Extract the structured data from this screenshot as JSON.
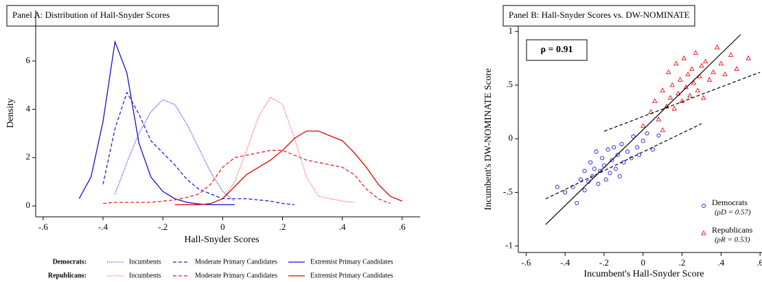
{
  "chart_data": [
    {
      "type": "line",
      "title": "Panel A: Distribution of Hall-Snyder Scores",
      "x_label": "Hall-Snyder Scores",
      "y_label": "Density",
      "x": [
        -0.48,
        -0.44,
        -0.4,
        -0.36,
        -0.32,
        -0.28,
        -0.24,
        -0.2,
        -0.16,
        -0.12,
        -0.08,
        -0.04,
        0,
        0.04,
        0.08,
        0.12,
        0.16,
        0.2,
        0.24,
        0.28,
        0.32,
        0.36,
        0.4,
        0.44,
        0.48,
        0.52,
        0.56,
        0.6
      ],
      "xlim": [
        -0.625,
        0.66
      ],
      "ylim": [
        -0.45,
        8.1
      ],
      "xticks": [
        {
          "value": -0.6,
          "label": "-.6"
        },
        {
          "value": -0.4,
          "label": "-.4"
        },
        {
          "value": -0.2,
          "label": "-.2"
        },
        0,
        {
          "value": 0.2,
          "label": ".2"
        },
        {
          "value": 0.4,
          "label": ".4"
        },
        {
          "value": 0.6,
          "label": ".6"
        }
      ],
      "yticks": [
        0,
        2,
        4,
        6
      ],
      "groups": [
        {
          "name": "Democrats:",
          "series": [
            {
              "name": "Incumbents",
              "color": "#3a3ae8",
              "dash": "dotted",
              "values": [
                null,
                null,
                null,
                0.5,
                1.8,
                3.0,
                3.9,
                4.4,
                4.2,
                3.4,
                2.4,
                1.4,
                0.6,
                0.2,
                null,
                null,
                null,
                null,
                null,
                null,
                null,
                null,
                null,
                null,
                null,
                null,
                null,
                null
              ]
            },
            {
              "name": "Moderate Primary Candidates",
              "color": "#2020d8",
              "dash": "dashed",
              "values": [
                null,
                null,
                0.9,
                3.2,
                4.7,
                3.8,
                2.7,
                2.2,
                1.7,
                1.1,
                0.7,
                0.5,
                0.3,
                0.3,
                0.3,
                0.25,
                0.2,
                0.1,
                0.05,
                null,
                null,
                null,
                null,
                null,
                null,
                null,
                null,
                null
              ]
            },
            {
              "name": "Extremist Primary Candidates",
              "color": "#1010d0",
              "dash": "solid",
              "values": [
                0.3,
                1.2,
                3.5,
                6.8,
                5.5,
                2.6,
                1.2,
                0.6,
                0.3,
                0.15,
                0.08,
                0.05,
                0.05,
                0.05,
                null,
                null,
                null,
                null,
                null,
                null,
                null,
                null,
                null,
                null,
                null,
                null,
                null,
                null
              ]
            }
          ]
        },
        {
          "name": "Republicans:",
          "series": [
            {
              "name": "Incumbents",
              "color": "#f06060",
              "dash": "dotted",
              "values": [
                null,
                null,
                null,
                null,
                null,
                null,
                null,
                null,
                null,
                null,
                null,
                null,
                0.3,
                1.0,
                2.3,
                3.7,
                4.5,
                4.2,
                2.8,
                1.2,
                0.4,
                0.3,
                0.2,
                0.15,
                null,
                null,
                null,
                null
              ]
            },
            {
              "name": "Moderate Primary Candidates",
              "color": "#e82020",
              "dash": "dashed",
              "values": [
                null,
                null,
                0.1,
                0.15,
                0.15,
                0.15,
                0.15,
                0.2,
                0.25,
                0.35,
                0.5,
                0.9,
                1.6,
                2.0,
                2.1,
                2.2,
                2.3,
                2.3,
                2.1,
                1.9,
                1.8,
                1.7,
                1.6,
                1.3,
                0.7,
                0.3,
                0.1,
                null
              ]
            },
            {
              "name": "Extremist Primary Candidates",
              "color": "#e00000",
              "dash": "solid",
              "values": [
                null,
                null,
                null,
                null,
                null,
                null,
                null,
                null,
                0.05,
                0.05,
                0.05,
                0.1,
                0.3,
                0.8,
                1.3,
                1.6,
                1.9,
                2.3,
                2.8,
                3.1,
                3.1,
                2.9,
                2.7,
                2.2,
                1.6,
                0.9,
                0.4,
                0.2
              ]
            }
          ]
        }
      ]
    },
    {
      "type": "scatter",
      "title": "Panel B: Hall-Snyder Scores vs. DW-NOMINATE",
      "x_label": "Incumbent's Hall-Snyder Score",
      "y_label": "Incumbent's DW-NOMINATE Score",
      "annotation": "ρ = 0.91",
      "xlim": [
        -0.64,
        0.61
      ],
      "ylim": [
        -1.06,
        1.05
      ],
      "xticks": [
        {
          "value": -0.6,
          "label": "-.6"
        },
        {
          "value": -0.4,
          "label": "-.4"
        },
        {
          "value": -0.2,
          "label": "-.2"
        },
        0,
        {
          "value": 0.2,
          "label": ".2"
        },
        {
          "value": 0.4,
          "label": ".4"
        },
        {
          "value": 0.6,
          "label": ".6"
        }
      ],
      "yticks": [
        {
          "value": -1,
          "label": "-1"
        },
        {
          "value": -0.5,
          "label": "-.5"
        },
        0,
        {
          "value": 0.5,
          "label": ".5"
        },
        1
      ],
      "series": [
        {
          "name": "Democrats",
          "note": "(ρD = 0.57)",
          "color": "#1a1ae0",
          "marker": "circle",
          "x": [
            -0.4,
            -0.36,
            -0.34,
            -0.32,
            -0.3,
            -0.3,
            -0.28,
            -0.27,
            -0.26,
            -0.25,
            -0.24,
            -0.23,
            -0.22,
            -0.21,
            -0.2,
            -0.19,
            -0.18,
            -0.17,
            -0.16,
            -0.15,
            -0.14,
            -0.13,
            -0.12,
            -0.11,
            -0.1,
            -0.08,
            -0.06,
            -0.05,
            -0.03,
            -0.02,
            0.0,
            0.02,
            0.05,
            0.08,
            -0.44
          ],
          "values": [
            -0.5,
            -0.45,
            -0.6,
            -0.38,
            -0.3,
            -0.48,
            -0.4,
            -0.22,
            -0.35,
            -0.28,
            -0.12,
            -0.42,
            -0.3,
            -0.18,
            -0.25,
            -0.38,
            -0.1,
            -0.32,
            -0.2,
            -0.08,
            -0.28,
            -0.15,
            -0.35,
            -0.05,
            -0.22,
            -0.12,
            -0.18,
            0.02,
            -0.08,
            -0.15,
            -0.02,
            0.05,
            -0.1,
            0.03,
            -0.45
          ]
        },
        {
          "name": "Republicans",
          "note": "(ρR = 0.53)",
          "color": "#e81010",
          "marker": "triangle",
          "x": [
            0.0,
            0.04,
            0.06,
            0.08,
            0.1,
            0.12,
            0.13,
            0.14,
            0.15,
            0.16,
            0.17,
            0.18,
            0.19,
            0.2,
            0.21,
            0.22,
            0.23,
            0.24,
            0.25,
            0.26,
            0.27,
            0.28,
            0.29,
            0.3,
            0.31,
            0.32,
            0.34,
            0.36,
            0.38,
            0.4,
            0.42,
            0.45,
            0.48,
            0.1,
            0.54
          ],
          "values": [
            0.12,
            0.25,
            0.35,
            0.18,
            0.45,
            0.3,
            0.62,
            0.38,
            0.5,
            0.28,
            0.7,
            0.42,
            0.55,
            0.35,
            0.75,
            0.48,
            0.6,
            0.4,
            0.65,
            0.52,
            0.8,
            0.45,
            0.58,
            0.68,
            0.38,
            0.72,
            0.55,
            0.62,
            0.85,
            0.7,
            0.6,
            0.78,
            0.65,
            0.08,
            0.75
          ]
        }
      ],
      "lines": [
        {
          "dash": "solid",
          "x": [
            -0.5,
            0.5
          ],
          "values": [
            -0.8,
            0.97
          ]
        },
        {
          "dash": "dashed",
          "x": [
            -0.5,
            0.3
          ],
          "values": [
            -0.56,
            0.14
          ]
        },
        {
          "dash": "dashed",
          "x": [
            -0.2,
            0.6
          ],
          "values": [
            0.07,
            0.62
          ]
        }
      ]
    }
  ]
}
